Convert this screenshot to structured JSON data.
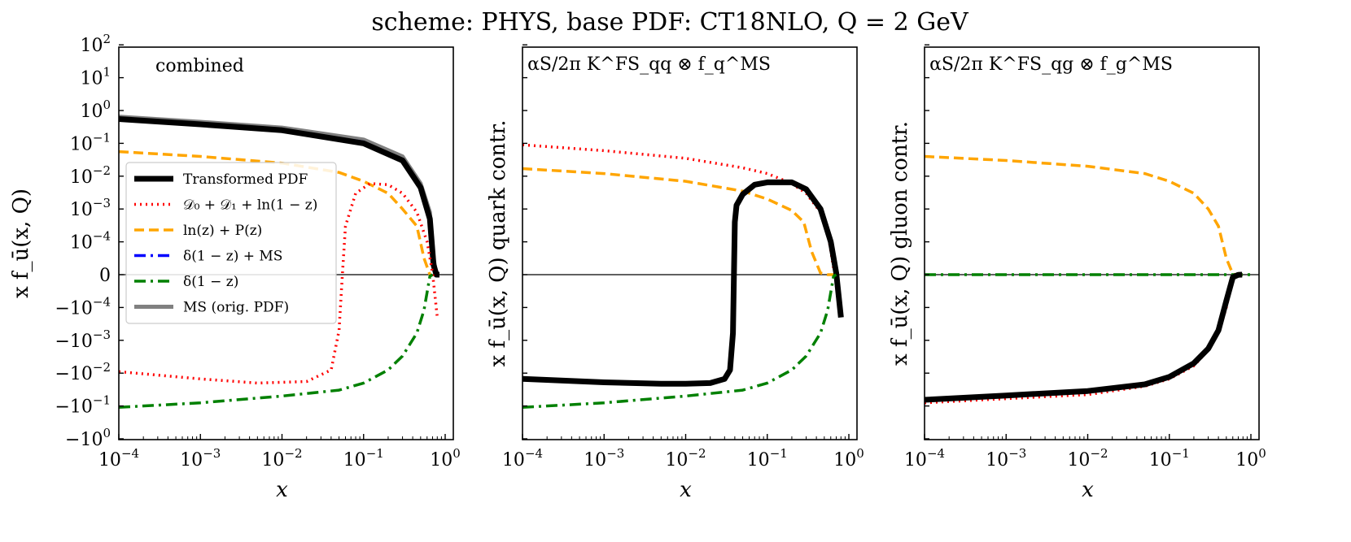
{
  "chart_data": {
    "type": "line",
    "title": "scheme: PHYS, base PDF: CT18NLO, Q = 2 GeV",
    "xscale": "log",
    "yscale": "symlog",
    "xlim": [
      0.0001,
      1
    ],
    "x_ticks": [
      {
        "base": "10",
        "exp": "−4",
        "value": 0.0001
      },
      {
        "base": "10",
        "exp": "−3",
        "value": 0.001
      },
      {
        "base": "10",
        "exp": "−2",
        "value": 0.01
      },
      {
        "base": "10",
        "exp": "−1",
        "value": 0.1
      },
      {
        "base": "10",
        "exp": "0",
        "value": 1
      }
    ],
    "y_ticks": [
      {
        "base": "10",
        "exp": "2",
        "value": 100
      },
      {
        "base": "10",
        "exp": "1",
        "value": 10
      },
      {
        "base": "10",
        "exp": "0",
        "value": 1
      },
      {
        "base": "10",
        "exp": "−1",
        "value": 0.1
      },
      {
        "base": "10",
        "exp": "−2",
        "value": 0.01
      },
      {
        "base": "10",
        "exp": "−3",
        "value": 0.001
      },
      {
        "base": "10",
        "exp": "−4",
        "value": 0.0001
      },
      {
        "base": "0",
        "exp": "",
        "value": 0
      },
      {
        "base": "−10",
        "exp": "−4",
        "value": -0.0001
      },
      {
        "base": "−10",
        "exp": "−3",
        "value": -0.001
      },
      {
        "base": "−10",
        "exp": "−2",
        "value": -0.01
      },
      {
        "base": "−10",
        "exp": "−1",
        "value": -0.1
      },
      {
        "base": "−10",
        "exp": "0",
        "value": -1
      }
    ],
    "legend": {
      "location": "center-left of first panel",
      "entries": [
        {
          "key": "transformed",
          "label": "Transformed PDF",
          "color": "#000000",
          "style": "solid-thick"
        },
        {
          "key": "d0d1",
          "label": "𝒟₀ + 𝒟₁ + ln(1 − z)",
          "color": "#ff0000",
          "style": "dotted"
        },
        {
          "key": "lnzpz",
          "label": "ln(z) + P(z)",
          "color": "#ffa500",
          "style": "dashed"
        },
        {
          "key": "deltams",
          "label": "δ(1 − z) + MS",
          "color": "#0000ff",
          "style": "dashdot"
        },
        {
          "key": "delta",
          "label": "δ(1 − z)",
          "color": "#008000",
          "style": "dashdot"
        },
        {
          "key": "orig",
          "label": "MS (orig. PDF)",
          "color": "#808080",
          "style": "solid"
        }
      ]
    },
    "panels": [
      {
        "label": "combined",
        "ylabel": "x f_ū(x, Q)",
        "xlabel": "x",
        "series": [
          {
            "key": "orig",
            "x": [
              0.0001,
              0.001,
              0.01,
              0.1,
              0.3,
              0.5,
              0.65,
              0.72,
              0.78,
              0.85
            ],
            "y": [
              0.65,
              0.45,
              0.3,
              0.13,
              0.04,
              0.006,
              0.0008,
              5e-05,
              0,
              0
            ]
          },
          {
            "key": "deltams",
            "x": [
              0.0001,
              0.001,
              0.01,
              0.1,
              0.3,
              0.5,
              0.65,
              0.72,
              0.78
            ],
            "y": [
              0.58,
              0.4,
              0.26,
              0.11,
              0.032,
              0.005,
              0.0006,
              4e-05,
              0
            ]
          },
          {
            "key": "transformed",
            "x": [
              0.0001,
              0.001,
              0.01,
              0.1,
              0.3,
              0.5,
              0.65,
              0.72,
              0.78,
              0.85
            ],
            "y": [
              0.55,
              0.38,
              0.25,
              0.1,
              0.03,
              0.0045,
              0.0005,
              3e-05,
              0,
              0
            ]
          },
          {
            "key": "lnzpz",
            "x": [
              0.0001,
              0.001,
              0.01,
              0.05,
              0.1,
              0.2,
              0.3,
              0.45,
              0.55,
              0.65
            ],
            "y": [
              0.056,
              0.04,
              0.025,
              0.013,
              0.007,
              0.003,
              0.001,
              0.0003,
              5e-05,
              0
            ]
          },
          {
            "key": "d0d1",
            "x": [
              0.0001,
              0.001,
              0.005,
              0.02,
              0.04,
              0.05,
              0.055,
              0.06,
              0.08,
              0.12,
              0.2,
              0.3,
              0.45,
              0.6,
              0.7,
              0.8
            ],
            "y": [
              -0.009,
              -0.015,
              -0.02,
              -0.018,
              -0.008,
              -0.0005,
              3e-07,
              0.0003,
              0.003,
              0.006,
              0.0055,
              0.003,
              0.0008,
              0.0001,
              5e-06,
              -0.0002
            ]
          },
          {
            "key": "delta",
            "x": [
              0.0001,
              0.001,
              0.01,
              0.05,
              0.1,
              0.2,
              0.3,
              0.45,
              0.55,
              0.65,
              0.7
            ],
            "y": [
              -0.11,
              -0.08,
              -0.05,
              -0.033,
              -0.02,
              -0.008,
              -0.003,
              -0.0006,
              -0.00012,
              -5e-06,
              0
            ]
          }
        ]
      },
      {
        "label": "αS/2π K^FS_qq ⊗ f_q^MS",
        "ylabel": "x f_ū(x, Q) quark contr.",
        "xlabel": "x",
        "series": [
          {
            "key": "d0d1",
            "x": [
              0.0001,
              0.001,
              0.01,
              0.05,
              0.1,
              0.2,
              0.3,
              0.45,
              0.55,
              0.65,
              0.75
            ],
            "y": [
              0.09,
              0.06,
              0.035,
              0.018,
              0.012,
              0.006,
              0.003,
              0.0008,
              0.0002,
              2e-05,
              0
            ]
          },
          {
            "key": "lnzpz",
            "x": [
              0.0001,
              0.001,
              0.01,
              0.05,
              0.1,
              0.2,
              0.28,
              0.35,
              0.45,
              0.55,
              0.65
            ],
            "y": [
              0.017,
              0.012,
              0.007,
              0.0035,
              0.002,
              0.0009,
              0.0004,
              7e-05,
              5e-06,
              0,
              0
            ]
          },
          {
            "key": "transformed",
            "x": [
              0.0001,
              0.001,
              0.005,
              0.01,
              0.02,
              0.03,
              0.035,
              0.038,
              0.04,
              0.042,
              0.05,
              0.07,
              0.1,
              0.2,
              0.3,
              0.45,
              0.6,
              0.7,
              0.8
            ],
            "y": [
              -0.015,
              -0.019,
              -0.021,
              -0.021,
              -0.02,
              -0.015,
              -0.008,
              -0.0006,
              0.0004,
              0.0013,
              0.0028,
              0.0055,
              0.0065,
              0.0065,
              0.004,
              0.001,
              0.0001,
              5e-06,
              -0.0002
            ]
          },
          {
            "key": "delta",
            "x": [
              0.0001,
              0.001,
              0.01,
              0.05,
              0.1,
              0.2,
              0.3,
              0.45,
              0.55,
              0.65,
              0.7
            ],
            "y": [
              -0.11,
              -0.08,
              -0.05,
              -0.033,
              -0.02,
              -0.008,
              -0.003,
              -0.0006,
              -0.00012,
              -5e-06,
              0
            ]
          }
        ]
      },
      {
        "label": "αS/2π K^FS_qg ⊗ f_g^MS",
        "ylabel": "x f_ū(x, Q) gluon contr.",
        "xlabel": "x",
        "series": [
          {
            "key": "lnzpz",
            "x": [
              0.0001,
              0.001,
              0.01,
              0.05,
              0.1,
              0.2,
              0.3,
              0.4,
              0.5,
              0.6,
              0.65
            ],
            "y": [
              0.04,
              0.03,
              0.02,
              0.012,
              0.007,
              0.003,
              0.001,
              0.0003,
              5e-05,
              2e-06,
              0
            ]
          },
          {
            "key": "delta",
            "x": [
              0.0001,
              1
            ],
            "y": [
              0,
              0
            ]
          },
          {
            "key": "d0d1",
            "x": [
              0.0001,
              0.001,
              0.01,
              0.05,
              0.1,
              0.2,
              0.3,
              0.4,
              0.5,
              0.6,
              0.7,
              0.78
            ],
            "y": [
              -0.08,
              -0.06,
              -0.045,
              -0.025,
              -0.015,
              -0.006,
              -0.002,
              -0.0006,
              -0.0001,
              -1e-05,
              -5e-07,
              0
            ]
          },
          {
            "key": "transformed",
            "x": [
              0.0001,
              0.001,
              0.01,
              0.05,
              0.1,
              0.2,
              0.3,
              0.4,
              0.5,
              0.6,
              0.7,
              0.78
            ],
            "y": [
              -0.065,
              -0.048,
              -0.035,
              -0.022,
              -0.013,
              -0.005,
              -0.0018,
              -0.0005,
              -8e-05,
              -8e-06,
              -4e-07,
              0
            ]
          }
        ]
      }
    ]
  }
}
